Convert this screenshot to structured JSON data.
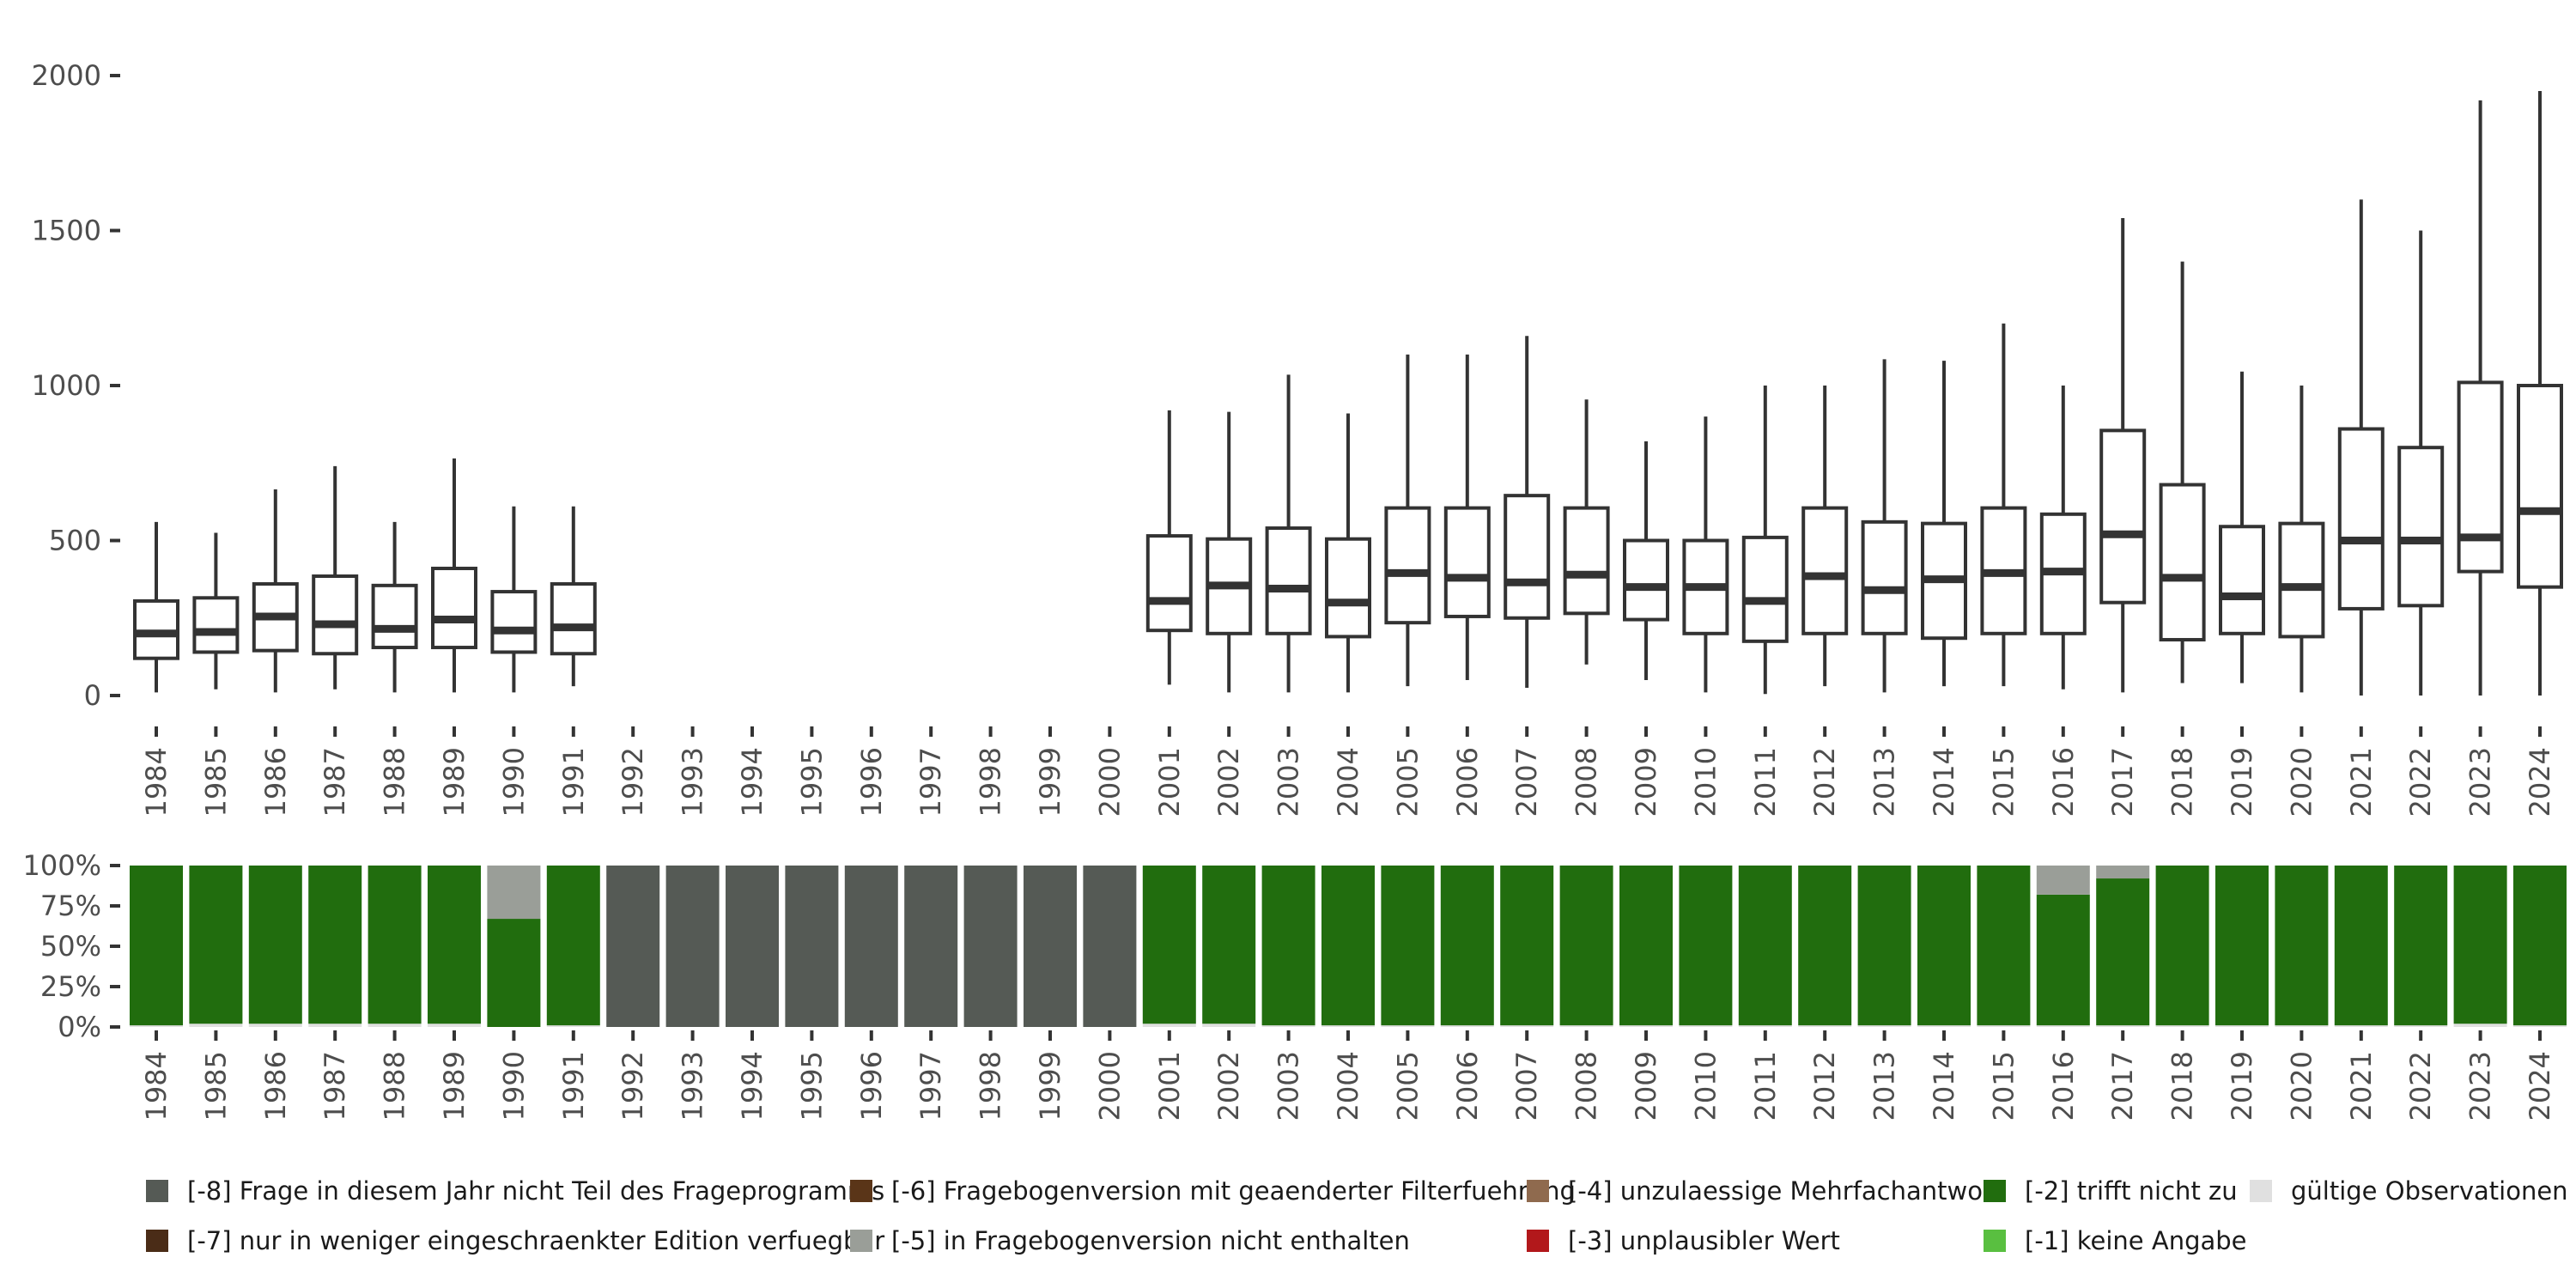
{
  "chart_data": [
    {
      "type": "boxplot",
      "title": "",
      "xlabel": "",
      "ylabel": "",
      "ylim": [
        0,
        2000
      ],
      "yticks": [
        "0",
        "500",
        "1000",
        "1500",
        "2000"
      ],
      "categories": [
        "1984",
        "1985",
        "1986",
        "1987",
        "1988",
        "1989",
        "1990",
        "1991",
        "1992",
        "1993",
        "1994",
        "1995",
        "1996",
        "1997",
        "1998",
        "1999",
        "2000",
        "2001",
        "2002",
        "2003",
        "2004",
        "2005",
        "2006",
        "2007",
        "2008",
        "2009",
        "2010",
        "2011",
        "2012",
        "2013",
        "2014",
        "2015",
        "2016",
        "2017",
        "2018",
        "2019",
        "2020",
        "2021",
        "2022",
        "2023",
        "2024"
      ],
      "boxes": [
        {
          "year": "1984",
          "min": 10,
          "q1": 120,
          "median": 200,
          "q3": 305,
          "max": 560
        },
        {
          "year": "1985",
          "min": 20,
          "q1": 140,
          "median": 205,
          "q3": 315,
          "max": 525
        },
        {
          "year": "1986",
          "min": 10,
          "q1": 145,
          "median": 255,
          "q3": 360,
          "max": 665
        },
        {
          "year": "1987",
          "min": 20,
          "q1": 135,
          "median": 230,
          "q3": 385,
          "max": 740
        },
        {
          "year": "1988",
          "min": 10,
          "q1": 155,
          "median": 215,
          "q3": 355,
          "max": 560
        },
        {
          "year": "1989",
          "min": 10,
          "q1": 155,
          "median": 245,
          "q3": 410,
          "max": 765
        },
        {
          "year": "1990",
          "min": 10,
          "q1": 140,
          "median": 210,
          "q3": 335,
          "max": 610
        },
        {
          "year": "1991",
          "min": 30,
          "q1": 135,
          "median": 220,
          "q3": 360,
          "max": 610
        },
        null,
        null,
        null,
        null,
        null,
        null,
        null,
        null,
        null,
        {
          "year": "2001",
          "min": 35,
          "q1": 210,
          "median": 305,
          "q3": 515,
          "max": 920
        },
        {
          "year": "2002",
          "min": 10,
          "q1": 200,
          "median": 355,
          "q3": 505,
          "max": 915
        },
        {
          "year": "2003",
          "min": 10,
          "q1": 200,
          "median": 345,
          "q3": 540,
          "max": 1035
        },
        {
          "year": "2004",
          "min": 10,
          "q1": 190,
          "median": 300,
          "q3": 505,
          "max": 910
        },
        {
          "year": "2005",
          "min": 30,
          "q1": 235,
          "median": 395,
          "q3": 605,
          "max": 1100
        },
        {
          "year": "2006",
          "min": 50,
          "q1": 255,
          "median": 380,
          "q3": 605,
          "max": 1100
        },
        {
          "year": "2007",
          "min": 25,
          "q1": 250,
          "median": 365,
          "q3": 645,
          "max": 1160
        },
        {
          "year": "2008",
          "min": 100,
          "q1": 265,
          "median": 390,
          "q3": 605,
          "max": 955
        },
        {
          "year": "2009",
          "min": 50,
          "q1": 245,
          "median": 350,
          "q3": 500,
          "max": 820
        },
        {
          "year": "2010",
          "min": 10,
          "q1": 200,
          "median": 350,
          "q3": 500,
          "max": 900
        },
        {
          "year": "2011",
          "min": 5,
          "q1": 175,
          "median": 305,
          "q3": 510,
          "max": 1000
        },
        {
          "year": "2012",
          "min": 30,
          "q1": 200,
          "median": 385,
          "q3": 605,
          "max": 1000
        },
        {
          "year": "2013",
          "min": 10,
          "q1": 200,
          "median": 340,
          "q3": 560,
          "max": 1085
        },
        {
          "year": "2014",
          "min": 30,
          "q1": 185,
          "median": 375,
          "q3": 555,
          "max": 1080
        },
        {
          "year": "2015",
          "min": 30,
          "q1": 200,
          "median": 395,
          "q3": 605,
          "max": 1200
        },
        {
          "year": "2016",
          "min": 20,
          "q1": 200,
          "median": 400,
          "q3": 585,
          "max": 1000
        },
        {
          "year": "2017",
          "min": 10,
          "q1": 300,
          "median": 520,
          "q3": 855,
          "max": 1540
        },
        {
          "year": "2018",
          "min": 40,
          "q1": 180,
          "median": 380,
          "q3": 680,
          "max": 1400
        },
        {
          "year": "2019",
          "min": 40,
          "q1": 200,
          "median": 320,
          "q3": 545,
          "max": 1045
        },
        {
          "year": "2020",
          "min": 10,
          "q1": 190,
          "median": 350,
          "q3": 555,
          "max": 1000
        },
        {
          "year": "2021",
          "min": 0,
          "q1": 280,
          "median": 500,
          "q3": 860,
          "max": 1600
        },
        {
          "year": "2022",
          "min": 0,
          "q1": 290,
          "median": 500,
          "q3": 800,
          "max": 1500
        },
        {
          "year": "2023",
          "min": 0,
          "q1": 400,
          "median": 510,
          "q3": 1010,
          "max": 1920
        },
        {
          "year": "2024",
          "min": 0,
          "q1": 350,
          "median": 595,
          "q3": 1000,
          "max": 1950
        }
      ]
    },
    {
      "type": "stacked_bar_percent",
      "title": "",
      "ylim": [
        0,
        100
      ],
      "yticks": [
        "0%",
        "25%",
        "50%",
        "75%",
        "100%"
      ],
      "categories": [
        "1984",
        "1985",
        "1986",
        "1987",
        "1988",
        "1989",
        "1990",
        "1991",
        "1992",
        "1993",
        "1994",
        "1995",
        "1996",
        "1997",
        "1998",
        "1999",
        "2000",
        "2001",
        "2002",
        "2003",
        "2004",
        "2005",
        "2006",
        "2007",
        "2008",
        "2009",
        "2010",
        "2011",
        "2012",
        "2013",
        "2014",
        "2015",
        "2016",
        "2017",
        "2018",
        "2019",
        "2020",
        "2021",
        "2022",
        "2023",
        "2024"
      ],
      "series": [
        {
          "name": "gültige Observationen",
          "color": "#e0e0e0",
          "values": [
            1,
            2,
            2,
            2,
            2,
            2,
            0,
            1,
            0,
            0,
            0,
            0,
            0,
            0,
            0,
            0,
            0,
            2,
            2,
            1,
            1,
            1,
            1,
            1,
            1,
            1,
            1,
            1,
            1,
            1,
            1,
            1,
            1,
            1,
            1,
            1,
            1,
            1,
            1,
            2,
            1
          ]
        },
        {
          "name": "[-1] keine Angabe",
          "color": "#59bf40",
          "values": [
            0,
            0,
            0,
            0,
            0,
            0,
            0,
            0,
            0,
            0,
            0,
            0,
            0,
            0,
            0,
            0,
            0,
            0,
            0,
            0,
            0,
            0,
            0,
            0,
            0,
            0,
            0,
            0,
            0,
            0,
            0,
            0,
            0,
            0,
            0,
            0,
            0,
            0,
            0,
            0,
            0
          ]
        },
        {
          "name": "[-2] trifft nicht zu",
          "color": "#216d0e",
          "values": [
            99,
            98,
            98,
            98,
            98,
            98,
            67,
            99,
            0,
            0,
            0,
            0,
            0,
            0,
            0,
            0,
            0,
            98,
            98,
            99,
            99,
            99,
            99,
            99,
            99,
            99,
            99,
            99,
            99,
            99,
            99,
            99,
            81,
            91,
            99,
            99,
            99,
            99,
            99,
            98,
            99
          ]
        },
        {
          "name": "[-5] in Fragebogenversion nicht enthalten",
          "color": "#9a9e98",
          "values": [
            0,
            0,
            0,
            0,
            0,
            0,
            33,
            0,
            0,
            0,
            0,
            0,
            0,
            0,
            0,
            0,
            0,
            0,
            0,
            0,
            0,
            0,
            0,
            0,
            0,
            0,
            0,
            0,
            0,
            0,
            0,
            0,
            18,
            8,
            0,
            0,
            0,
            0,
            0,
            0,
            0
          ]
        },
        {
          "name": "[-8] Frage in diesem Jahr nicht Teil des Frageprogramms",
          "color": "#555a55",
          "values": [
            0,
            0,
            0,
            0,
            0,
            0,
            0,
            0,
            100,
            100,
            100,
            100,
            100,
            100,
            100,
            100,
            100,
            0,
            0,
            0,
            0,
            0,
            0,
            0,
            0,
            0,
            0,
            0,
            0,
            0,
            0,
            0,
            0,
            0,
            0,
            0,
            0,
            0,
            0,
            0,
            0
          ]
        }
      ],
      "legend": [
        {
          "label": "[-8] Frage in diesem Jahr nicht Teil des Frageprogramms",
          "color": "#555a55"
        },
        {
          "label": "[-7] nur in weniger eingeschraenkter Edition verfuegbar",
          "color": "#4a2c17"
        },
        {
          "label": "[-6] Fragebogenversion mit geaenderter Filterfuehrung",
          "color": "#5a3518"
        },
        {
          "label": "[-5] in Fragebogenversion nicht enthalten",
          "color": "#9a9e98"
        },
        {
          "label": "[-4] unzulaessige Mehrfachantwort",
          "color": "#8f6a4e"
        },
        {
          "label": "[-3] unplausibler Wert",
          "color": "#b2181b"
        },
        {
          "label": "[-2] trifft nicht zu",
          "color": "#216d0e"
        },
        {
          "label": "[-1] keine Angabe",
          "color": "#59bf40"
        },
        {
          "label": "gültige Observationen",
          "color": "#e0e0e0"
        }
      ],
      "legend_position": "bottom"
    }
  ]
}
